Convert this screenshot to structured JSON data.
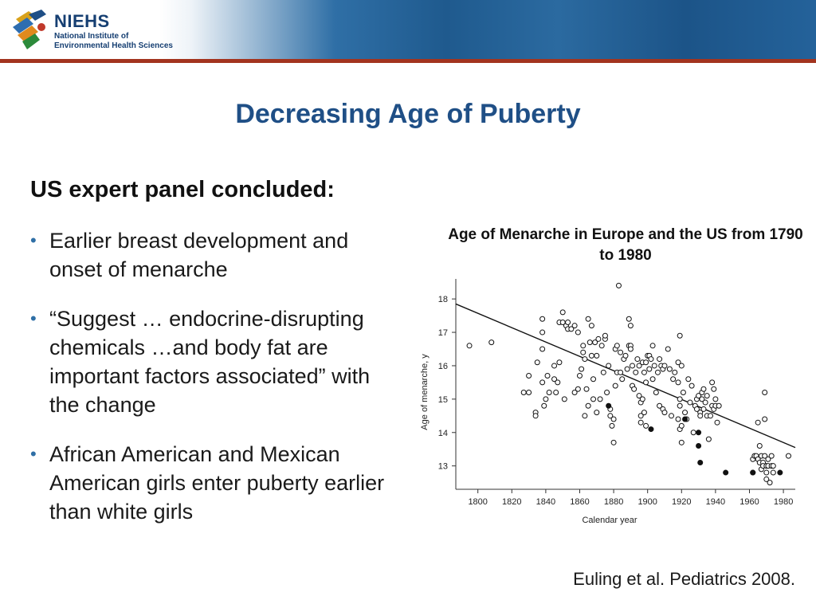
{
  "header": {
    "logo_acronym": "NIEHS",
    "logo_line1": "National Institute of",
    "logo_line2": "Environmental Health Sciences"
  },
  "slide": {
    "title": "Decreasing Age of Puberty",
    "panel_heading": "US expert panel concluded:",
    "bullets": [
      "Earlier breast development and onset of menarche",
      "“Suggest … endocrine-disrupting chemicals …and body fat are important factors associated” with the change",
      "African American and Mexican American girls enter puberty earlier than white girls"
    ],
    "citation": "Euling et al. Pediatrics 2008."
  },
  "chart_data": {
    "type": "scatter",
    "title": "Age of Menarche in Europe and the US from 1790 to 1980",
    "xlabel": "Calendar year",
    "ylabel": "Age of menarche, y",
    "xlim": [
      1787,
      1987
    ],
    "ylim": [
      12.3,
      18.6
    ],
    "x_ticks": [
      1800,
      1820,
      1840,
      1860,
      1880,
      1900,
      1920,
      1940,
      1960,
      1980
    ],
    "y_ticks": [
      13,
      14,
      15,
      16,
      17,
      18
    ],
    "grid": false,
    "series": [
      {
        "marker": "open-circle",
        "points": [
          [
            1795,
            16.6
          ],
          [
            1808,
            16.7
          ],
          [
            1827,
            15.2
          ],
          [
            1830,
            15.2
          ],
          [
            1830,
            15.7
          ],
          [
            1834,
            14.6
          ],
          [
            1834,
            14.5
          ],
          [
            1835,
            16.1
          ],
          [
            1838,
            17.4
          ],
          [
            1838,
            17.0
          ],
          [
            1838,
            16.5
          ],
          [
            1838,
            15.5
          ],
          [
            1839,
            14.8
          ],
          [
            1840,
            15.0
          ],
          [
            1841,
            15.7
          ],
          [
            1842,
            15.2
          ],
          [
            1845,
            16.0
          ],
          [
            1845,
            15.6
          ],
          [
            1846,
            15.2
          ],
          [
            1847,
            15.5
          ],
          [
            1848,
            16.1
          ],
          [
            1848,
            17.3
          ],
          [
            1850,
            17.6
          ],
          [
            1850,
            17.3
          ],
          [
            1851,
            15.0
          ],
          [
            1852,
            17.2
          ],
          [
            1853,
            17.3
          ],
          [
            1853,
            17.1
          ],
          [
            1855,
            17.1
          ],
          [
            1857,
            17.2
          ],
          [
            1857,
            15.2
          ],
          [
            1859,
            17.0
          ],
          [
            1859,
            15.3
          ],
          [
            1860,
            15.7
          ],
          [
            1861,
            15.9
          ],
          [
            1862,
            16.6
          ],
          [
            1862,
            16.4
          ],
          [
            1863,
            16.2
          ],
          [
            1863,
            14.5
          ],
          [
            1864,
            15.3
          ],
          [
            1865,
            17.4
          ],
          [
            1865,
            14.8
          ],
          [
            1866,
            16.7
          ],
          [
            1867,
            16.3
          ],
          [
            1867,
            17.2
          ],
          [
            1868,
            15.6
          ],
          [
            1868,
            15.0
          ],
          [
            1869,
            16.7
          ],
          [
            1870,
            14.6
          ],
          [
            1870,
            16.3
          ],
          [
            1871,
            16.8
          ],
          [
            1872,
            15.0
          ],
          [
            1873,
            16.6
          ],
          [
            1874,
            15.8
          ],
          [
            1875,
            16.8
          ],
          [
            1875,
            16.9
          ],
          [
            1876,
            15.2
          ],
          [
            1877,
            16.0
          ],
          [
            1878,
            14.5
          ],
          [
            1878,
            14.7
          ],
          [
            1879,
            14.2
          ],
          [
            1880,
            14.4
          ],
          [
            1880,
            13.7
          ],
          [
            1881,
            16.5
          ],
          [
            1881,
            15.4
          ],
          [
            1882,
            16.6
          ],
          [
            1882,
            15.8
          ],
          [
            1883,
            18.4
          ],
          [
            1884,
            15.8
          ],
          [
            1884,
            16.4
          ],
          [
            1885,
            15.6
          ],
          [
            1886,
            16.2
          ],
          [
            1887,
            16.3
          ],
          [
            1888,
            15.9
          ],
          [
            1889,
            17.4
          ],
          [
            1889,
            16.6
          ],
          [
            1890,
            17.2
          ],
          [
            1890,
            16.6
          ],
          [
            1890,
            16.5
          ],
          [
            1891,
            16.0
          ],
          [
            1891,
            15.4
          ],
          [
            1892,
            15.3
          ],
          [
            1893,
            15.8
          ],
          [
            1894,
            16.2
          ],
          [
            1895,
            16.0
          ],
          [
            1895,
            15.1
          ],
          [
            1896,
            14.9
          ],
          [
            1896,
            14.3
          ],
          [
            1896,
            14.5
          ],
          [
            1897,
            16.1
          ],
          [
            1897,
            15.0
          ],
          [
            1898,
            15.8
          ],
          [
            1898,
            14.6
          ],
          [
            1899,
            16.1
          ],
          [
            1899,
            15.5
          ],
          [
            1899,
            14.2
          ],
          [
            1900,
            16.3
          ],
          [
            1901,
            16.3
          ],
          [
            1901,
            15.9
          ],
          [
            1902,
            16.2
          ],
          [
            1903,
            16.6
          ],
          [
            1903,
            15.6
          ],
          [
            1904,
            16.0
          ],
          [
            1905,
            15.2
          ],
          [
            1906,
            15.8
          ],
          [
            1907,
            16.2
          ],
          [
            1907,
            14.8
          ],
          [
            1908,
            16.0
          ],
          [
            1909,
            15.9
          ],
          [
            1909,
            14.7
          ],
          [
            1910,
            16.0
          ],
          [
            1910,
            14.6
          ],
          [
            1912,
            16.5
          ],
          [
            1913,
            15.9
          ],
          [
            1914,
            14.5
          ],
          [
            1915,
            15.6
          ],
          [
            1916,
            15.8
          ],
          [
            1918,
            16.1
          ],
          [
            1918,
            15.5
          ],
          [
            1918,
            14.4
          ],
          [
            1919,
            16.9
          ],
          [
            1919,
            15.0
          ],
          [
            1919,
            14.8
          ],
          [
            1919,
            14.1
          ],
          [
            1920,
            16.0
          ],
          [
            1920,
            14.2
          ],
          [
            1920,
            13.7
          ],
          [
            1921,
            15.2
          ],
          [
            1922,
            14.6
          ],
          [
            1923,
            14.4
          ],
          [
            1924,
            15.6
          ],
          [
            1925,
            14.9
          ],
          [
            1926,
            15.4
          ],
          [
            1927,
            14.0
          ],
          [
            1928,
            14.8
          ],
          [
            1929,
            15.0
          ],
          [
            1929,
            14.7
          ],
          [
            1930,
            15.1
          ],
          [
            1931,
            14.6
          ],
          [
            1931,
            14.5
          ],
          [
            1932,
            15.0
          ],
          [
            1932,
            15.2
          ],
          [
            1933,
            15.3
          ],
          [
            1933,
            14.7
          ],
          [
            1934,
            14.9
          ],
          [
            1935,
            15.1
          ],
          [
            1935,
            14.5
          ],
          [
            1936,
            13.8
          ],
          [
            1937,
            14.5
          ],
          [
            1938,
            15.5
          ],
          [
            1938,
            14.8
          ],
          [
            1939,
            15.3
          ],
          [
            1939,
            14.7
          ],
          [
            1940,
            15.0
          ],
          [
            1940,
            14.8
          ],
          [
            1941,
            14.3
          ],
          [
            1942,
            14.8
          ],
          [
            1962,
            13.2
          ],
          [
            1962,
            12.8
          ],
          [
            1963,
            13.3
          ],
          [
            1964,
            13.3
          ],
          [
            1965,
            13.2
          ],
          [
            1965,
            14.3
          ],
          [
            1966,
            13.6
          ],
          [
            1966,
            13.1
          ],
          [
            1967,
            12.9
          ],
          [
            1967,
            13.3
          ],
          [
            1968,
            13.1
          ],
          [
            1968,
            13.0
          ],
          [
            1969,
            13.3
          ],
          [
            1969,
            14.4
          ],
          [
            1969,
            15.2
          ],
          [
            1970,
            12.6
          ],
          [
            1970,
            13.0
          ],
          [
            1970,
            12.8
          ],
          [
            1971,
            13.0
          ],
          [
            1971,
            13.2
          ],
          [
            1972,
            12.5
          ],
          [
            1973,
            13.3
          ],
          [
            1973,
            13.0
          ],
          [
            1974,
            13.0
          ],
          [
            1974,
            12.8
          ],
          [
            1983,
            13.3
          ]
        ]
      },
      {
        "marker": "filled-circle",
        "points": [
          [
            1877,
            14.8
          ],
          [
            1902,
            14.1
          ],
          [
            1922,
            14.4
          ],
          [
            1930,
            14.0
          ],
          [
            1930,
            13.6
          ],
          [
            1931,
            13.1
          ],
          [
            1946,
            12.8
          ],
          [
            1962,
            12.8
          ],
          [
            1978,
            12.8
          ]
        ]
      }
    ],
    "trend_line": {
      "x": [
        1787,
        1987
      ],
      "y": [
        17.85,
        13.55
      ]
    }
  }
}
